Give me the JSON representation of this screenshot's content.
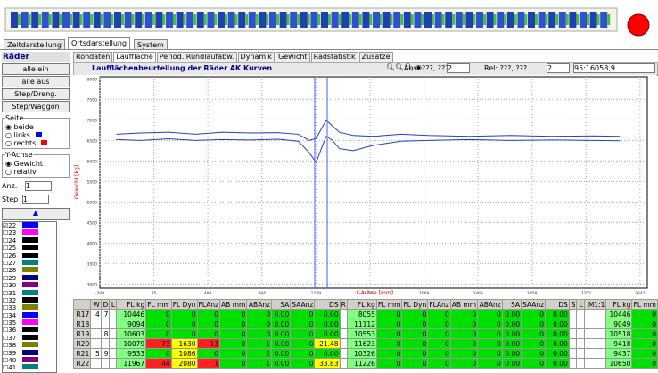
{
  "tabs": [
    "Zeitdarstellung",
    "Ortsdarstellung",
    "System"
  ],
  "subtabs": [
    "Rohdaten",
    "Lauffläche",
    "Period. Rundlaufabw.",
    "Dynamik",
    "Gewicht",
    "Radstatistik",
    "Zusätze"
  ],
  "left_panel": {
    "title": "Räder",
    "buttons": [
      "alle ein",
      "alle aus",
      "Step/Dreng.",
      "Step/Waggon"
    ],
    "seite": {
      "title": "Seite",
      "options": [
        "beide",
        "links",
        "rechts"
      ]
    },
    "yachse": {
      "title": "Y-Achse",
      "options": [
        "Gewicht",
        "relativ"
      ]
    },
    "anz_label": "Anz.",
    "anz_value": "1",
    "step_label": "Step",
    "step_value": "1",
    "wheels": [
      {
        "label": "22",
        "color": "#0000ff"
      },
      {
        "label": "23",
        "color": "#ff00ff"
      },
      {
        "label": "24",
        "color": "#000000"
      },
      {
        "label": "25",
        "color": "#000000"
      },
      {
        "label": "26",
        "color": "#000000"
      },
      {
        "label": "27",
        "color": "#008080"
      },
      {
        "label": "28",
        "color": "#808000"
      },
      {
        "label": "29",
        "color": "#000080"
      },
      {
        "label": "30",
        "color": "#800080"
      },
      {
        "label": "31",
        "color": "#008080"
      },
      {
        "label": "32",
        "color": "#000000"
      },
      {
        "label": "33",
        "color": "#808000"
      },
      {
        "label": "34",
        "color": "#0000ff"
      },
      {
        "label": "35",
        "color": "#ff00ff"
      },
      {
        "label": "36",
        "color": "#000000"
      },
      {
        "label": "37",
        "color": "#000000"
      },
      {
        "label": "38",
        "color": "#808000"
      },
      {
        "label": "39",
        "color": "#000080"
      },
      {
        "label": "40",
        "color": "#800080"
      },
      {
        "label": "41",
        "color": "#008080"
      }
    ]
  },
  "toolbar": {
    "abs": "Abs: ???, ???",
    "abs_n": "2",
    "rel": "Rel: ???, ???",
    "rel_n": "2",
    "pos": "95:16058,9"
  },
  "chart_data": {
    "type": "line",
    "title": "Laufflächenbeurteilung der Räder AK Kurven",
    "xlabel": "X-Achse [mm]",
    "ylabel": "Gewicht [kg]",
    "xlim": [
      -300,
      3700
    ],
    "ylim": [
      2900,
      8050
    ],
    "xticks": [
      -300,
      95,
      489,
      884,
      1279,
      1674,
      2069,
      2463,
      2858,
      3252,
      3647
    ],
    "yticks": [
      3000,
      3500,
      4000,
      4500,
      5000,
      5500,
      6000,
      6500,
      7000,
      7500,
      8000
    ],
    "grid": true,
    "x": [
      -180,
      0,
      200,
      400,
      600,
      800,
      1000,
      1150,
      1230,
      1280,
      1330,
      1354,
      1400,
      1450,
      1550,
      1700,
      1900,
      2100,
      2400,
      2700,
      3000,
      3300,
      3500
    ],
    "series": [
      {
        "color": "#2040c0",
        "values": [
          6650,
          6680,
          6700,
          6650,
          6700,
          6680,
          6690,
          6650,
          6500,
          6550,
          6850,
          6990,
          6850,
          6700,
          6620,
          6600,
          6650,
          6620,
          6600,
          6620,
          6600,
          6610,
          6600
        ]
      },
      {
        "color": "#2040c0",
        "values": [
          6520,
          6500,
          6540,
          6500,
          6520,
          6510,
          6530,
          6480,
          6200,
          5960,
          6400,
          6600,
          6500,
          6300,
          6250,
          6380,
          6480,
          6500,
          6520,
          6500,
          6510,
          6500,
          6490
        ]
      }
    ]
  },
  "table": {
    "headers": [
      null,
      "W",
      "D",
      "L",
      "FL kg",
      "FL mm",
      "FL Dyn",
      "FLAnz",
      "AB mm",
      "ABAnz",
      "SA",
      "SAAnz",
      "DS",
      "R",
      "FL kg",
      "FL mm",
      "FL Dyn",
      "FLAnz",
      "AB mm",
      "ABAnz",
      "SA",
      "SAAnz",
      "DS",
      "S",
      "L",
      "M1:1",
      "FL kg",
      "FL mm"
    ],
    "rows": [
      [
        "R17",
        "4",
        "7",
        null,
        "10446",
        "0",
        "0",
        "0",
        "0",
        "0",
        "0.00",
        "0",
        "0.00",
        null,
        "8055",
        "0",
        "0",
        "0",
        "0",
        "0",
        "0.00",
        "0",
        "0.00",
        null,
        null,
        null,
        "10446",
        "0"
      ],
      [
        "R18",
        null,
        null,
        null,
        "9094",
        "0",
        "0",
        "0",
        "0",
        "0",
        "0.00",
        "0",
        "0.00",
        null,
        "11112",
        "0",
        "0",
        "0",
        "0",
        "0",
        "0.00",
        "0",
        "0.00",
        null,
        null,
        null,
        "9049",
        "0"
      ],
      [
        "R19",
        null,
        "8",
        null,
        "10603",
        "0",
        "0",
        "0",
        "0",
        "0",
        "0.00",
        "0",
        "0.00",
        null,
        "10553",
        "0",
        "0",
        "0",
        "0",
        "0",
        "0.00",
        "0",
        "0.00",
        null,
        null,
        null,
        "10518",
        "0"
      ],
      [
        "R20",
        null,
        null,
        null,
        "10079",
        "73",
        "1630",
        "13",
        "0",
        "1",
        "0.00",
        "0",
        "21.48",
        null,
        "11623",
        "0",
        "0",
        "0",
        "0",
        "0",
        "0.00",
        "0",
        "0.00",
        null,
        null,
        null,
        "9418",
        "0"
      ],
      [
        "R21",
        "5",
        "9",
        null,
        "9533",
        "0",
        "1086",
        "0",
        "0",
        "2",
        "0.00",
        "0",
        "0.00",
        null,
        "10326",
        "0",
        "0",
        "0",
        "0",
        "0",
        "0.00",
        "0",
        "0.00",
        null,
        null,
        null,
        "9437",
        "0"
      ],
      [
        "R22",
        null,
        null,
        null,
        "11967",
        "44",
        "2080",
        "1",
        "0",
        "1",
        "0.00",
        "0",
        "33.83",
        null,
        "11226",
        "0",
        "0",
        "0",
        "0",
        "0",
        "0.00",
        "0",
        "0.00",
        null,
        null,
        null,
        "10650",
        "0"
      ]
    ]
  }
}
